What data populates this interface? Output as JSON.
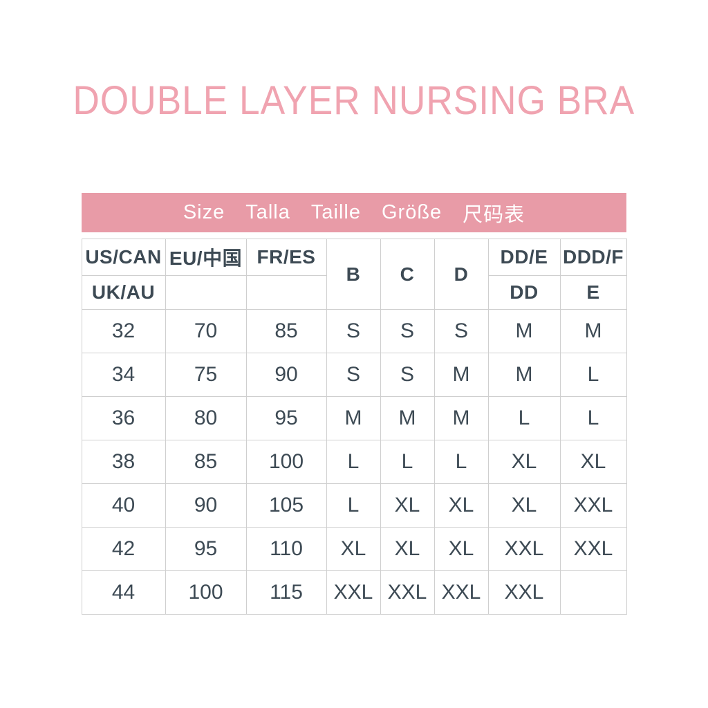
{
  "chart_data": {
    "type": "table",
    "title": "DOUBLE LAYER NURSING BRA",
    "banner_labels": [
      "Size",
      "Talla",
      "Taille",
      "Größe",
      "尺码表"
    ],
    "header": {
      "us_can": "US/CAN",
      "uk_au": "UK/AU",
      "eu_cn": "EU/中国",
      "eu_cn_sub": "",
      "fr_es": "FR/ES",
      "fr_es_sub": "",
      "cup_b": "B",
      "cup_c": "C",
      "cup_d": "D",
      "cup_dd_e": "DD/E",
      "cup_dd": "DD",
      "cup_ddd_f": "DDD/F",
      "cup_e": "E"
    },
    "columns": [
      "US/CAN UK/AU",
      "EU/中国",
      "FR/ES",
      "B",
      "C",
      "D",
      "DD/E DD",
      "DDD/F E"
    ],
    "rows": [
      [
        "32",
        "70",
        "85",
        "S",
        "S",
        "S",
        "M",
        "M"
      ],
      [
        "34",
        "75",
        "90",
        "S",
        "S",
        "M",
        "M",
        "L"
      ],
      [
        "36",
        "80",
        "95",
        "M",
        "M",
        "M",
        "L",
        "L"
      ],
      [
        "38",
        "85",
        "100",
        "L",
        "L",
        "L",
        "XL",
        "XL"
      ],
      [
        "40",
        "90",
        "105",
        "L",
        "XL",
        "XL",
        "XL",
        "XXL"
      ],
      [
        "42",
        "95",
        "110",
        "XL",
        "XL",
        "XL",
        "XXL",
        "XXL"
      ],
      [
        "44",
        "100",
        "115",
        "XXL",
        "XXL",
        "XXL",
        "XXL",
        ""
      ]
    ]
  },
  "colors": {
    "title_pink": "#f0a3b0",
    "banner_pink": "#e89ba7",
    "text_dark": "#3d4a54",
    "grid_line": "#cfcfcf",
    "banner_text": "#ffffff",
    "background": "#ffffff"
  }
}
